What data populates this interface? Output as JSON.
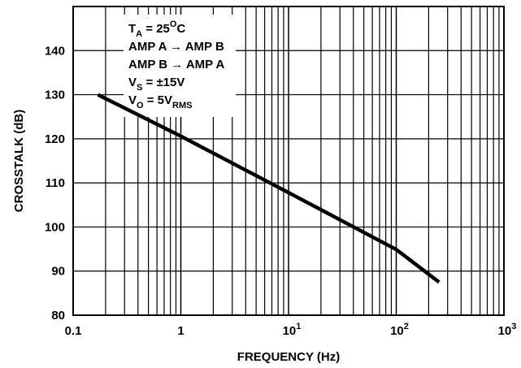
{
  "chart_data": {
    "type": "line",
    "xlabel": "FREQUENCY (Hz)",
    "ylabel": "CROSSTALK (dB)",
    "x_scale": "log",
    "xlim": [
      0.1,
      1000
    ],
    "ylim": [
      80,
      150
    ],
    "x_ticks": [
      {
        "value": 0.1,
        "label": "0.1"
      },
      {
        "value": 1,
        "label": "1"
      },
      {
        "value": 10,
        "base": "10",
        "exp": "1"
      },
      {
        "value": 100,
        "base": "10",
        "exp": "2"
      },
      {
        "value": 1000,
        "base": "10",
        "exp": "3"
      }
    ],
    "y_ticks": [
      80,
      90,
      100,
      110,
      120,
      130,
      140
    ],
    "grid": true,
    "series": [
      {
        "x": [
          0.17,
          1,
          10,
          100,
          250
        ],
        "y": [
          130,
          120.6,
          107.8,
          94.9,
          87.5
        ]
      }
    ],
    "annotation": [
      {
        "segments": [
          {
            "t": "T"
          },
          {
            "t": "A",
            "sub": true
          },
          {
            "t": " = 25"
          },
          {
            "t": "O",
            "sup": true
          },
          {
            "t": "C"
          }
        ]
      },
      {
        "segments": [
          {
            "t": "AMP A → AMP B"
          }
        ]
      },
      {
        "segments": [
          {
            "t": "AMP B → AMP A"
          }
        ]
      },
      {
        "segments": [
          {
            "t": "V"
          },
          {
            "t": "S",
            "sub": true
          },
          {
            "t": " = ±15V"
          }
        ]
      },
      {
        "segments": [
          {
            "t": "V"
          },
          {
            "t": "O",
            "sub": true
          },
          {
            "t": " = 5V"
          },
          {
            "t": "RMS",
            "sub": true
          }
        ]
      }
    ]
  }
}
